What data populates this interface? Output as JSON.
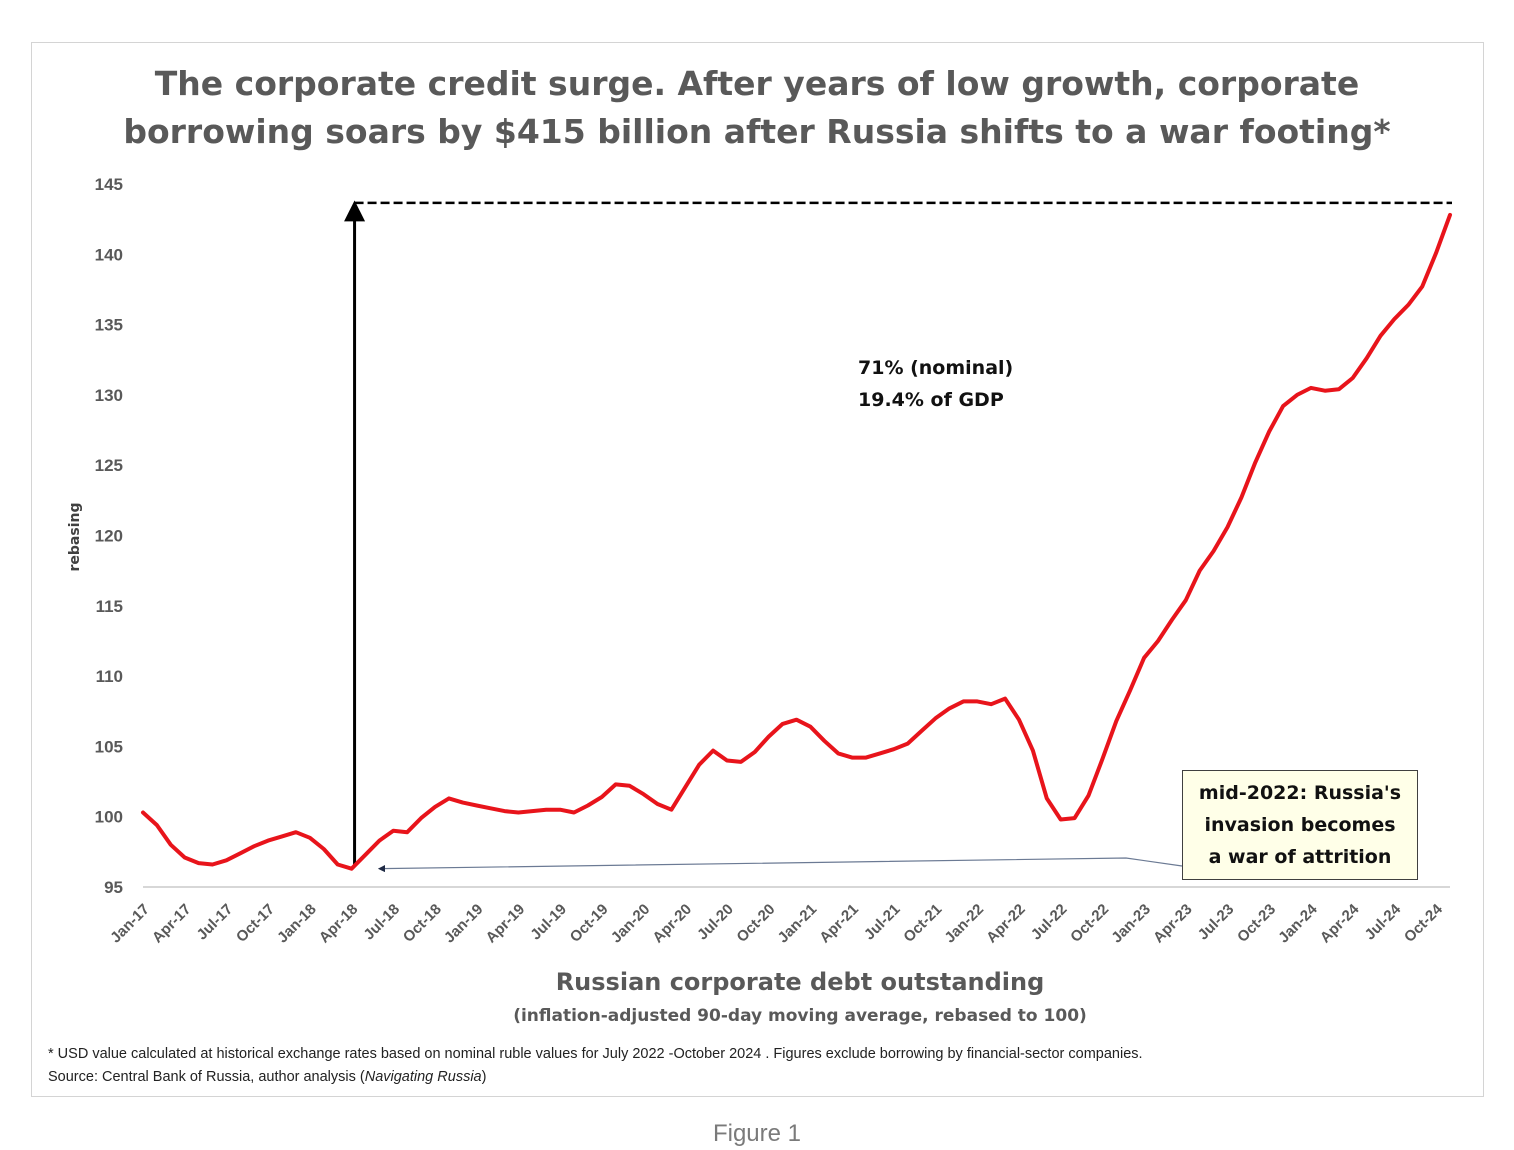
{
  "chart_data": {
    "type": "line",
    "title_lines": [
      "The corporate credit surge.  After years of low growth, corporate",
      "borrowing soars by $415 billion after Russia shifts to a war footing*"
    ],
    "ylabel": "rebasing",
    "xlabel": "Russian corporate debt outstanding",
    "xlabel_sub": "(inflation-adjusted 90-day moving average, rebased to 100)",
    "ylim": [
      95,
      145
    ],
    "yticks": [
      95,
      100,
      105,
      110,
      115,
      120,
      125,
      130,
      135,
      140,
      145
    ],
    "xtick_labels": [
      "Jan-17",
      "Apr-17",
      "Jul-17",
      "Oct-17",
      "Jan-18",
      "Apr-18",
      "Jul-18",
      "Oct-18",
      "Jan-19",
      "Apr-19",
      "Jul-19",
      "Oct-19",
      "Jan-20",
      "Apr-20",
      "Jul-20",
      "Oct-20",
      "Jan-21",
      "Apr-21",
      "Jul-21",
      "Oct-21",
      "Jan-22",
      "Apr-22",
      "Jul-22",
      "Oct-22",
      "Jan-23",
      "Apr-23",
      "Jul-23",
      "Oct-23",
      "Jan-24",
      "Apr-24",
      "Jul-24",
      "Oct-24"
    ],
    "series": [
      {
        "name": "Russian corporate debt outstanding",
        "color": "#e8141b",
        "values": [
          100.3,
          99.4,
          98.0,
          97.1,
          96.7,
          96.6,
          96.9,
          97.4,
          97.9,
          98.3,
          98.6,
          98.9,
          98.5,
          97.7,
          96.6,
          96.3,
          97.3,
          98.3,
          99.0,
          98.9,
          99.9,
          100.7,
          101.3,
          101.0,
          100.8,
          100.6,
          100.4,
          100.3,
          100.4,
          100.5,
          100.5,
          100.3,
          100.8,
          101.4,
          102.3,
          102.2,
          101.6,
          100.9,
          100.5,
          102.1,
          103.7,
          104.7,
          104.0,
          103.9,
          104.6,
          105.7,
          106.6,
          106.9,
          106.4,
          105.4,
          104.5,
          104.2,
          104.2,
          104.5,
          104.8,
          105.2,
          106.1,
          107.0,
          107.7,
          108.2,
          108.2,
          108.0,
          108.4,
          106.9,
          104.7,
          101.3,
          99.8,
          99.9,
          101.5,
          104.1,
          106.8,
          109.0,
          111.3,
          112.5,
          114.0,
          115.4,
          117.5,
          118.9,
          120.6,
          122.7,
          125.2,
          127.4,
          129.2,
          130.0,
          130.5,
          130.3,
          130.4,
          131.2,
          132.6,
          134.2,
          135.4,
          136.4,
          137.7,
          140.1,
          142.8
        ]
      }
    ],
    "annotations": {
      "peak_text": [
        "71% (nominal)",
        "19.4% of GDP"
      ],
      "box_text": [
        "mid-2022: Russia's",
        "invasion becomes",
        "a war of attrition"
      ]
    }
  },
  "footnote": {
    "line1": "* USD value calculated at historical exchange rates based on nominal ruble values for July 2022 -October 2024 .  Figures exclude  borrowing by financial-sector companies.",
    "line2_prefix": "Source: Central Bank of Russia, author analysis (",
    "line2_italic": "Navigating Russia",
    "line2_suffix": ")"
  },
  "caption": "Figure 1"
}
